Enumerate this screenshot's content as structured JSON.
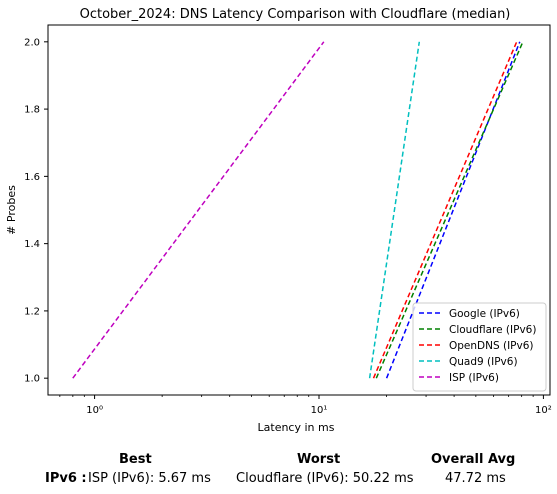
{
  "chart_data": {
    "type": "line",
    "title": "October_2024: DNS Latency Comparison with Cloudflare (median)",
    "xlabel": "Latency in ms",
    "ylabel": "# Probes",
    "xscale": "log",
    "xlim": [
      0.62,
      107
    ],
    "ylim": [
      0.95,
      2.05
    ],
    "xticks": [
      {
        "value": 1,
        "label": "10⁰"
      },
      {
        "value": 10,
        "label": "10¹"
      },
      {
        "value": 100,
        "label": "10²"
      }
    ],
    "yticks": [
      {
        "value": 1.0,
        "label": "1.0"
      },
      {
        "value": 1.2,
        "label": "1.2"
      },
      {
        "value": 1.4,
        "label": "1.4"
      },
      {
        "value": 1.6,
        "label": "1.6"
      },
      {
        "value": 1.8,
        "label": "1.8"
      },
      {
        "value": 2.0,
        "label": "2.0"
      }
    ],
    "grid": false,
    "legend_position": "bottom-right",
    "line_style": "dashed",
    "series": [
      {
        "name": "Google (IPv6)",
        "color": "#0000ff",
        "x": [
          20.0,
          78.5
        ],
        "y": [
          1,
          2
        ]
      },
      {
        "name": "Cloudflare (IPv6)",
        "color": "#008000",
        "x": [
          18.0,
          81.0
        ],
        "y": [
          1,
          2
        ]
      },
      {
        "name": "OpenDNS (IPv6)",
        "color": "#ff0000",
        "x": [
          17.5,
          76.0
        ],
        "y": [
          1,
          2
        ]
      },
      {
        "name": "Quad9 (IPv6)",
        "color": "#00bfbf",
        "x": [
          16.8,
          28.0
        ],
        "y": [
          1,
          2
        ]
      },
      {
        "name": "ISP (IPv6)",
        "color": "#bf00bf",
        "x": [
          0.8,
          10.5
        ],
        "y": [
          1,
          2
        ]
      }
    ]
  },
  "summary": {
    "headers": {
      "best": "Best",
      "worst": "Worst",
      "overall": "Overall Avg"
    },
    "row_label": "IPv6 :",
    "best": "ISP (IPv6): 5.67 ms",
    "worst": "Cloudflare (IPv6): 50.22 ms",
    "overall": "47.72 ms"
  }
}
